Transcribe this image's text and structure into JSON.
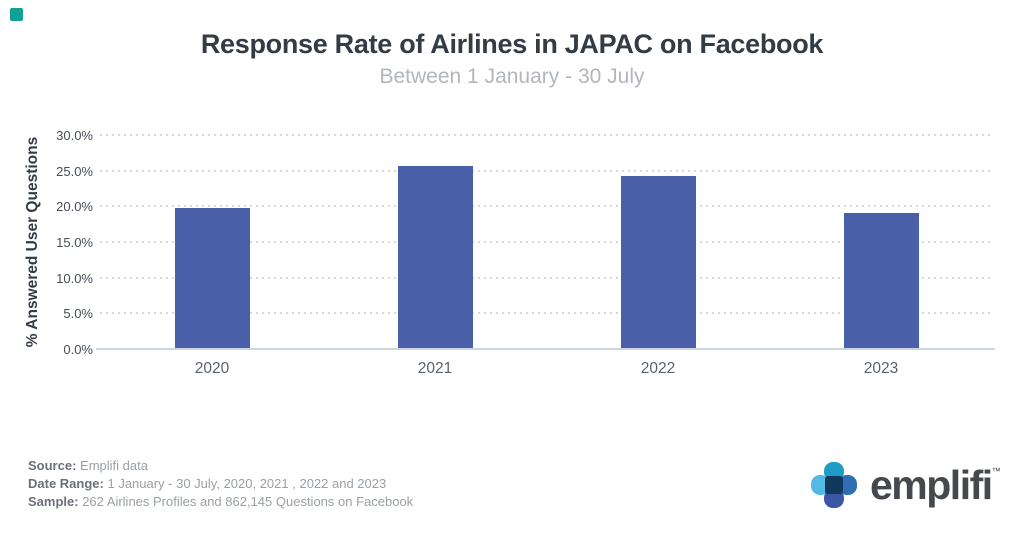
{
  "page": {
    "corner_mark_color": "#0fa096"
  },
  "chart_data": {
    "type": "bar",
    "title": "Response Rate of Airlines in JAPAC on Facebook",
    "subtitle": "Between 1 January - 30 July",
    "ylabel": "% Answered User Questions",
    "xlabel": "",
    "categories": [
      "2020",
      "2021",
      "2022",
      "2023"
    ],
    "values": [
      19.8,
      25.7,
      24.2,
      19.1
    ],
    "ylim": [
      0,
      30
    ],
    "ytick_values": [
      0,
      5,
      10,
      15,
      20,
      25,
      30
    ],
    "ytick_labels": [
      "0.0%",
      "5.0%",
      "10.0%",
      "15.0%",
      "20.0%",
      "25.0%",
      "30.0%"
    ],
    "grid": "horizontal-dotted",
    "legend": "none",
    "bar_color": "#4960a8"
  },
  "footer": {
    "source_label": "Source:",
    "source_value": " Emplifi data",
    "date_range_label": "Date Range:",
    "date_range_value": " 1 January - 30 July, 2020, 2021 , 2022 and 2023",
    "sample_label": "Sample:",
    "sample_value": " 262 Airlines Profiles and 862,145 Questions on Facebook"
  },
  "logo": {
    "wordmark": "emplifi",
    "trademark": "™",
    "petal_top_color": "#1d9dc6",
    "petal_left_color": "#55b9e8",
    "petal_right_color": "#2d6eb5",
    "petal_bottom_color": "#3d55a5",
    "center_color": "#11395e"
  }
}
